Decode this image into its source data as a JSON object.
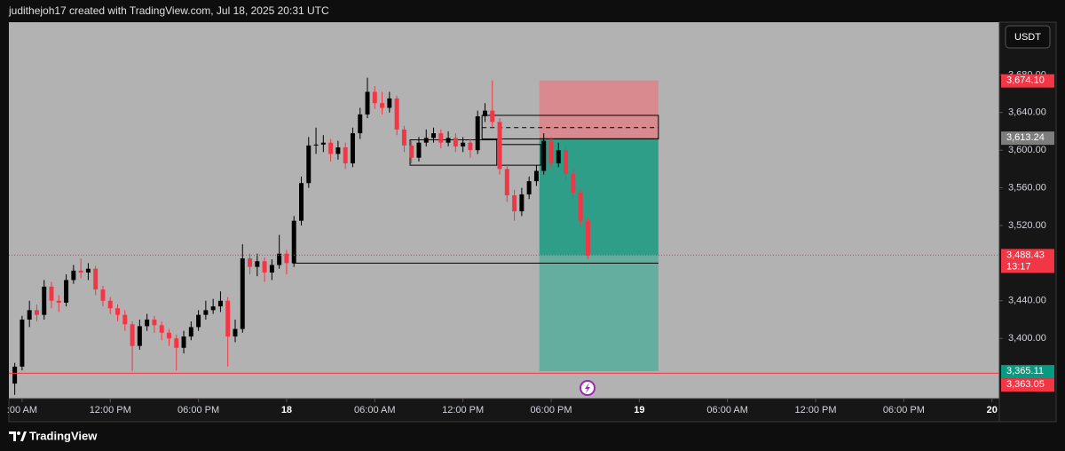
{
  "header": {
    "attribution": "judithejoh17 created with TradingView.com, Jul 18, 2025 20:31 UTC"
  },
  "footer": {
    "brand": "TradingView"
  },
  "chart_data": {
    "type": "candlestick",
    "currency": "USDT",
    "background": "#b2b2b2",
    "up_color": "#000000",
    "down_color": "#f23645",
    "x": [
      5.5,
      6,
      6.5,
      7,
      7.5,
      8,
      8.5,
      9,
      9.5,
      10,
      10.5,
      11,
      11.5,
      12,
      12.5,
      13,
      13.5,
      14,
      14.5,
      15,
      15.5,
      16,
      16.5,
      17,
      17.5,
      18,
      18.5,
      19,
      19.5,
      20,
      20.5,
      21,
      21.5,
      22,
      22.5,
      23,
      23.5,
      24,
      24.5,
      25,
      25.5,
      26,
      26.5,
      27,
      27.5,
      28,
      28.5,
      29,
      29.5,
      30,
      30.5,
      31,
      31.5,
      32,
      32.5,
      33,
      33.5,
      34,
      34.5,
      35,
      35.5,
      36,
      36.5,
      37,
      37.5,
      38,
      38.5,
      39,
      39.5,
      40,
      40.5,
      41,
      41.5,
      42,
      42.5,
      43,
      43.5,
      44,
      44.5
    ],
    "open": [
      3352,
      3370,
      3420,
      3430,
      3425,
      3455,
      3440,
      3438,
      3462,
      3472,
      3470,
      3474,
      3452,
      3440,
      3432,
      3425,
      3415,
      3392,
      3413,
      3420,
      3414,
      3406,
      3400,
      3390,
      3402,
      3412,
      3425,
      3430,
      3434,
      3440,
      3402,
      3410,
      3485,
      3476,
      3482,
      3470,
      3478,
      3490,
      3480,
      3525,
      3565,
      3605,
      3606,
      3608,
      3596,
      3603,
      3586,
      3618,
      3638,
      3662,
      3650,
      3645,
      3655,
      3622,
      3605,
      3592,
      3608,
      3613,
      3618,
      3608,
      3613,
      3604,
      3608,
      3600,
      3636,
      3642,
      3630,
      3580,
      3552,
      3535,
      3553,
      3567,
      3578,
      3610,
      3586,
      3600,
      3575,
      3555,
      3525
    ],
    "high": [
      3374,
      3424,
      3440,
      3436,
      3462,
      3460,
      3446,
      3468,
      3478,
      3485,
      3480,
      3477,
      3456,
      3444,
      3436,
      3430,
      3418,
      3420,
      3426,
      3424,
      3418,
      3410,
      3404,
      3408,
      3418,
      3430,
      3440,
      3442,
      3450,
      3444,
      3420,
      3500,
      3490,
      3490,
      3486,
      3484,
      3510,
      3494,
      3530,
      3572,
      3614,
      3624,
      3616,
      3612,
      3610,
      3608,
      3624,
      3645,
      3677,
      3668,
      3662,
      3662,
      3658,
      3626,
      3610,
      3614,
      3622,
      3624,
      3622,
      3620,
      3618,
      3614,
      3612,
      3642,
      3650,
      3674,
      3634,
      3584,
      3558,
      3560,
      3572,
      3584,
      3618,
      3614,
      3608,
      3604,
      3580,
      3558,
      3528
    ],
    "low": [
      3340,
      3366,
      3412,
      3418,
      3420,
      3432,
      3428,
      3434,
      3458,
      3464,
      3462,
      3446,
      3434,
      3426,
      3418,
      3408,
      3365,
      3388,
      3408,
      3406,
      3398,
      3392,
      3366,
      3384,
      3398,
      3408,
      3420,
      3426,
      3428,
      3370,
      3396,
      3406,
      3468,
      3466,
      3460,
      3462,
      3474,
      3468,
      3476,
      3520,
      3560,
      3596,
      3598,
      3588,
      3590,
      3580,
      3582,
      3612,
      3634,
      3644,
      3638,
      3640,
      3616,
      3598,
      3586,
      3588,
      3604,
      3608,
      3602,
      3604,
      3598,
      3598,
      3592,
      3596,
      3630,
      3624,
      3574,
      3545,
      3525,
      3530,
      3548,
      3562,
      3574,
      3580,
      3582,
      3568,
      3550,
      3518,
      3484
    ],
    "close": [
      3370,
      3420,
      3430,
      3425,
      3455,
      3440,
      3438,
      3462,
      3472,
      3470,
      3474,
      3452,
      3440,
      3432,
      3425,
      3415,
      3392,
      3413,
      3420,
      3414,
      3406,
      3400,
      3390,
      3402,
      3412,
      3425,
      3430,
      3434,
      3440,
      3402,
      3410,
      3485,
      3476,
      3482,
      3470,
      3478,
      3490,
      3480,
      3525,
      3565,
      3605,
      3606,
      3608,
      3596,
      3603,
      3586,
      3618,
      3638,
      3662,
      3650,
      3645,
      3655,
      3622,
      3605,
      3592,
      3608,
      3613,
      3618,
      3608,
      3613,
      3604,
      3608,
      3600,
      3636,
      3642,
      3630,
      3580,
      3552,
      3535,
      3553,
      3567,
      3578,
      3610,
      3586,
      3600,
      3575,
      3555,
      3525,
      3488
    ],
    "xlim": [
      5.1,
      72.5
    ],
    "xticks": [
      {
        "value": 6,
        "label": ":00 AM"
      },
      {
        "value": 12,
        "label": "12:00 PM"
      },
      {
        "value": 18,
        "label": "06:00 PM"
      },
      {
        "value": 24,
        "label": "18"
      },
      {
        "value": 30,
        "label": "06:00 AM"
      },
      {
        "value": 36,
        "label": "12:00 PM"
      },
      {
        "value": 42,
        "label": "06:00 PM"
      },
      {
        "value": 48,
        "label": "19"
      },
      {
        "value": 54,
        "label": "06:00 AM"
      },
      {
        "value": 60,
        "label": "12:00 PM"
      },
      {
        "value": 66,
        "label": "06:00 PM"
      },
      {
        "value": 72,
        "label": "20"
      }
    ],
    "ylim": [
      3336,
      3736
    ],
    "yticks": [
      {
        "value": 3680,
        "label": "3,680.00"
      },
      {
        "value": 3640,
        "label": "3,640.00"
      },
      {
        "value": 3600,
        "label": "3,600.00"
      },
      {
        "value": 3560,
        "label": "3,560.00"
      },
      {
        "value": 3520,
        "label": "3,520.00"
      },
      {
        "value": 3440,
        "label": "3,440.00"
      },
      {
        "value": 3400,
        "label": "3,400.00"
      }
    ],
    "price_line": {
      "value": 3488.43,
      "label": "3,488.43",
      "countdown": "13:17"
    },
    "price_badges": [
      {
        "value": 3674.1,
        "label": "3,674.10",
        "color": "#f23645"
      },
      {
        "value": 3613.24,
        "label": "3,613.24",
        "color": "#7d7d7d"
      },
      {
        "value": 3365.11,
        "label": "3,365.11",
        "color": "#089981"
      },
      {
        "value": 3363.05,
        "label": "3,363.05",
        "color": "#f23645"
      }
    ],
    "level_lines": [
      {
        "value": 3480,
        "t0": 24.4,
        "t1": 49.3
      }
    ],
    "boxes": [
      {
        "t0": 32.4,
        "t1": 38.3,
        "top": 3611,
        "bottom": 3584
      },
      {
        "t0": 37.3,
        "t1": 49.3,
        "top": 3637,
        "bottom": 3612,
        "mid": 3624
      },
      {
        "t0": 38.4,
        "t1": 41.3,
        "top": 3606,
        "bottom": 3584
      }
    ],
    "position": {
      "t0": 41.2,
      "t1": 49.3,
      "entry": 3613.24,
      "stop": 3674.1,
      "target": 3365.11
    }
  }
}
